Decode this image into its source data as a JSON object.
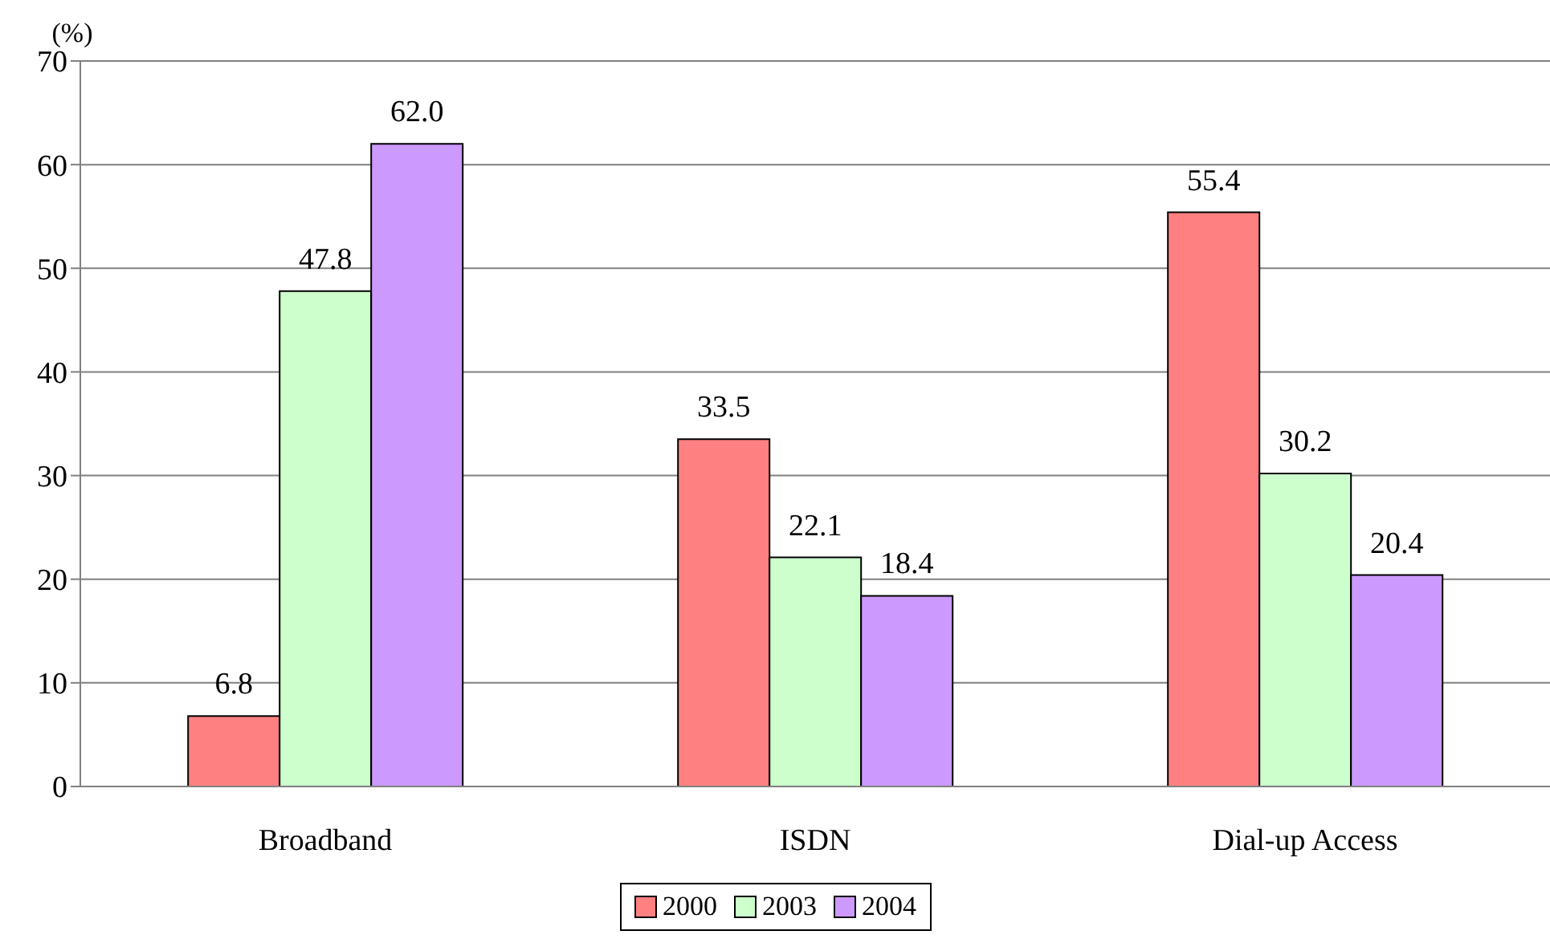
{
  "chart_data": {
    "type": "bar",
    "ylabel": "(%)",
    "categories": [
      "Broadband",
      "ISDN",
      "Dial-up Access"
    ],
    "series": [
      {
        "name": "2000",
        "color": "#ff8080",
        "values": [
          6.8,
          33.5,
          55.4
        ],
        "value_labels": [
          "6.8",
          "33.5",
          "55.4"
        ]
      },
      {
        "name": "2003",
        "color": "#ccffcc",
        "values": [
          47.8,
          22.1,
          30.2
        ],
        "value_labels": [
          "47.8",
          "22.1",
          "30.2"
        ]
      },
      {
        "name": "2004",
        "color": "#cc99ff",
        "values": [
          62.0,
          18.4,
          20.4
        ],
        "value_labels": [
          "62.0",
          "18.4",
          "20.4"
        ]
      }
    ],
    "ylim": [
      0,
      70
    ],
    "yticks": [
      0,
      10,
      20,
      30,
      40,
      50,
      60,
      70
    ],
    "grid": "y",
    "legend": "bottom"
  }
}
